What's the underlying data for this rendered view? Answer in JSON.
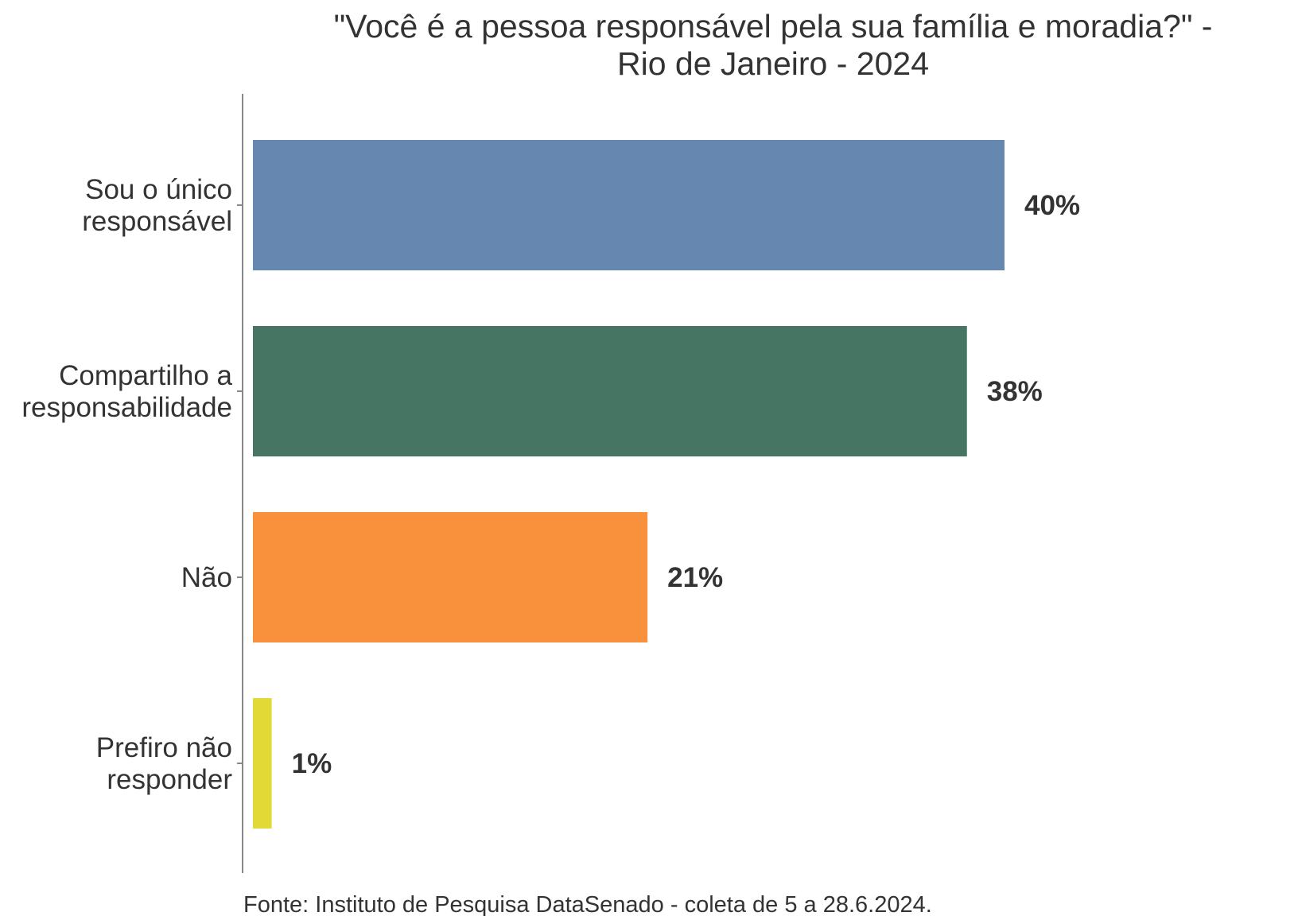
{
  "chart_data": {
    "type": "bar",
    "orientation": "horizontal",
    "title": [
      "\"Você é a pessoa responsável pela sua família e moradia?\" -",
      "Rio de Janeiro - 2024"
    ],
    "categories": [
      [
        "Sou o único",
        "responsável"
      ],
      [
        "Compartilho a",
        "responsabilidade"
      ],
      [
        "Não"
      ],
      [
        "Prefiro não",
        "responder"
      ]
    ],
    "values": [
      40,
      38,
      21,
      1
    ],
    "value_labels": [
      "40%",
      "38%",
      "21%",
      "1%"
    ],
    "colors": [
      "#6688b0",
      "#467563",
      "#f9913c",
      "#e3d936"
    ],
    "xlim": [
      0,
      40
    ],
    "grid": false,
    "caption": "Fonte: Instituto de Pesquisa DataSenado - coleta de 5 a 28.6.2024."
  }
}
